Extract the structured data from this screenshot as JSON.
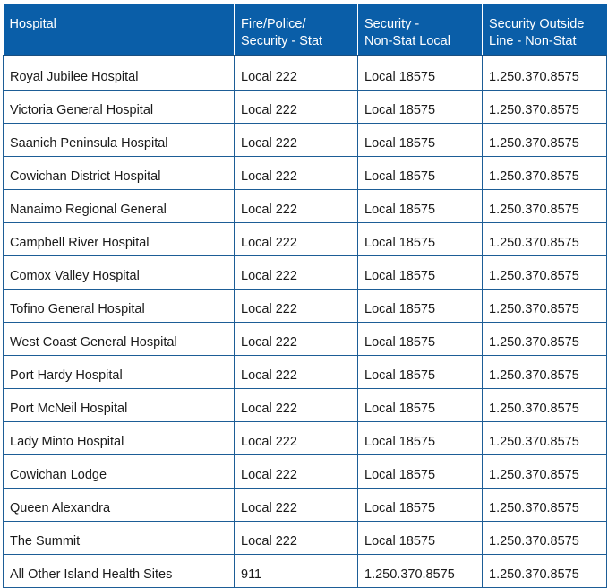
{
  "table": {
    "headers": [
      {
        "line1": "Hospital",
        "line2": ""
      },
      {
        "line1": "Fire/Police/",
        "line2": "Security - Stat"
      },
      {
        "line1": "Security -",
        "line2": "Non-Stat Local"
      },
      {
        "line1": "Security Outside",
        "line2": "Line - Non-Stat"
      }
    ],
    "rows": [
      [
        "Royal Jubilee Hospital",
        "Local 222",
        "Local 18575",
        "1.250.370.8575"
      ],
      [
        "Victoria General Hospital",
        "Local 222",
        "Local 18575",
        "1.250.370.8575"
      ],
      [
        "Saanich Peninsula Hospital",
        "Local 222",
        "Local 18575",
        "1.250.370.8575"
      ],
      [
        "Cowichan District Hospital",
        "Local 222",
        "Local 18575",
        "1.250.370.8575"
      ],
      [
        "Nanaimo Regional General",
        "Local 222",
        "Local 18575",
        "1.250.370.8575"
      ],
      [
        "Campbell River Hospital",
        "Local 222",
        "Local 18575",
        "1.250.370.8575"
      ],
      [
        "Comox Valley Hospital",
        "Local 222",
        "Local 18575",
        "1.250.370.8575"
      ],
      [
        "Tofino General Hospital",
        "Local 222",
        "Local 18575",
        "1.250.370.8575"
      ],
      [
        "West Coast General Hospital",
        "Local 222",
        "Local 18575",
        "1.250.370.8575"
      ],
      [
        "Port Hardy Hospital",
        "Local 222",
        "Local 18575",
        "1.250.370.8575"
      ],
      [
        "Port McNeil Hospital",
        "Local 222",
        "Local 18575",
        "1.250.370.8575"
      ],
      [
        "Lady Minto Hospital",
        "Local 222",
        "Local 18575",
        "1.250.370.8575"
      ],
      [
        "Cowichan Lodge",
        "Local 222",
        "Local 18575",
        "1.250.370.8575"
      ],
      [
        "Queen Alexandra",
        "Local 222",
        "Local 18575",
        "1.250.370.8575"
      ],
      [
        "The Summit",
        "Local 222",
        "Local 18575",
        "1.250.370.8575"
      ],
      [
        "All Other Island Health Sites",
        "911",
        "1.250.370.8575",
        "1.250.370.8575"
      ]
    ]
  },
  "colors": {
    "header_bg": "#0a5ea8",
    "header_text": "#ffffff",
    "border": "#1d5d96"
  }
}
